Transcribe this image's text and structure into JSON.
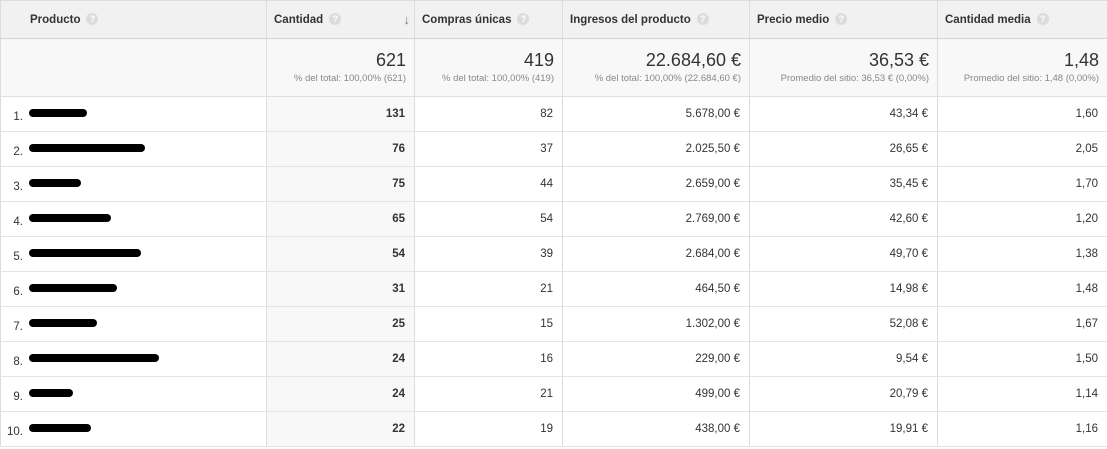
{
  "table": {
    "headers": [
      {
        "label": "Producto"
      },
      {
        "label": "Cantidad",
        "sorted": true
      },
      {
        "label": "Compras únicas"
      },
      {
        "label": "Ingresos del producto"
      },
      {
        "label": "Precio medio"
      },
      {
        "label": "Cantidad media"
      }
    ],
    "help_glyph": "?",
    "sort_glyph": "↓",
    "totals": [
      {
        "value": "621",
        "sub": "% del total: 100,00% (621)"
      },
      {
        "value": "419",
        "sub": "% del total: 100,00% (419)"
      },
      {
        "value": "22.684,60 €",
        "sub": "% del total: 100,00% (22.684,60 €)"
      },
      {
        "value": "36,53 €",
        "sub": "Promedio del sitio: 36,53 € (0,00%)"
      },
      {
        "value": "1,48",
        "sub": "Promedio del sitio: 1,48 (0,00%)"
      }
    ],
    "rows": [
      {
        "index": "1.",
        "product": "",
        "redacted": true,
        "cantidad": "131",
        "compras": "82",
        "ingresos": "5.678,00 €",
        "precio": "43,34 €",
        "media": "1,60"
      },
      {
        "index": "2.",
        "product": "",
        "redacted": true,
        "cantidad": "76",
        "compras": "37",
        "ingresos": "2.025,50 €",
        "precio": "26,65 €",
        "media": "2,05"
      },
      {
        "index": "3.",
        "product": "",
        "redacted": true,
        "cantidad": "75",
        "compras": "44",
        "ingresos": "2.659,00 €",
        "precio": "35,45 €",
        "media": "1,70"
      },
      {
        "index": "4.",
        "product": "",
        "redacted": true,
        "cantidad": "65",
        "compras": "54",
        "ingresos": "2.769,00 €",
        "precio": "42,60 €",
        "media": "1,20"
      },
      {
        "index": "5.",
        "product": "",
        "redacted": true,
        "cantidad": "54",
        "compras": "39",
        "ingresos": "2.684,00 €",
        "precio": "49,70 €",
        "media": "1,38"
      },
      {
        "index": "6.",
        "product": "",
        "redacted": true,
        "cantidad": "31",
        "compras": "21",
        "ingresos": "464,50 €",
        "precio": "14,98 €",
        "media": "1,48"
      },
      {
        "index": "7.",
        "product": "",
        "redacted": true,
        "cantidad": "25",
        "compras": "15",
        "ingresos": "1.302,00 €",
        "precio": "52,08 €",
        "media": "1,67"
      },
      {
        "index": "8.",
        "product": "",
        "redacted": true,
        "cantidad": "24",
        "compras": "16",
        "ingresos": "229,00 €",
        "precio": "9,54 €",
        "media": "1,50"
      },
      {
        "index": "9.",
        "product": "",
        "redacted": true,
        "cantidad": "24",
        "compras": "21",
        "ingresos": "499,00 €",
        "precio": "20,79 €",
        "media": "1,14"
      },
      {
        "index": "10.",
        "product": "",
        "redacted": true,
        "cantidad": "22",
        "compras": "19",
        "ingresos": "438,00 €",
        "precio": "19,91 €",
        "media": "1,16"
      }
    ]
  },
  "colors": {
    "link": "#2a62b8",
    "header_bg": "#f1f1f1",
    "totals_bg": "#f8f8f8",
    "redaction": "#000000"
  }
}
